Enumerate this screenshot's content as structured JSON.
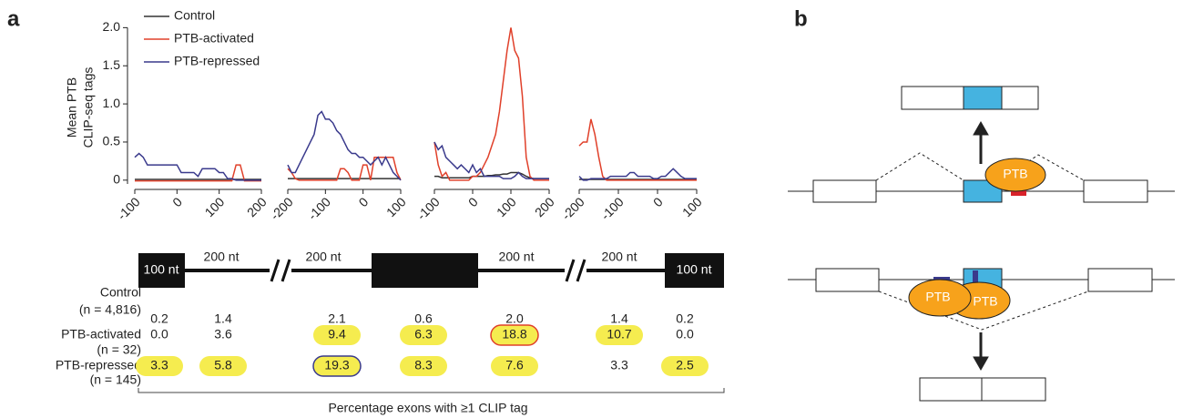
{
  "panel_labels": [
    "a",
    "b"
  ],
  "chart_data": [
    {
      "type": "line",
      "ylabel": [
        "Mean PTB",
        "CLIP-seq tags"
      ],
      "legend": "upper left",
      "xlim": [
        -100,
        200
      ],
      "xticks": [
        -100,
        0,
        100,
        200
      ],
      "ylim": [
        -0.05,
        2.1
      ],
      "yticks": [
        0,
        0.5,
        {
          "value": 1,
          "label": "1.0"
        },
        1.5,
        {
          "value": 2,
          "label": "2.0"
        }
      ],
      "x": [
        -100,
        -90,
        -80,
        -70,
        -60,
        -50,
        -40,
        -30,
        -20,
        -10,
        0,
        10,
        20,
        30,
        40,
        50,
        60,
        70,
        80,
        90,
        100,
        110,
        120,
        130,
        140,
        150,
        160,
        170,
        180,
        190,
        200
      ],
      "series": [
        {
          "name": "Control",
          "color": "#333333",
          "values": [
            0.01,
            0.01,
            0.01,
            0.01,
            0.01,
            0.01,
            0.01,
            0.01,
            0.01,
            0.01,
            0.01,
            0.01,
            0.01,
            0.01,
            0.01,
            0.01,
            0.01,
            0.01,
            0.01,
            0.01,
            0.01,
            0.01,
            0.01,
            0.01,
            0.01,
            0.01,
            0.01,
            0.01,
            0.01,
            0.01,
            0.01
          ]
        },
        {
          "name": "PTB-activated",
          "color": "#e0402a",
          "values": [
            -0.01,
            -0.01,
            -0.01,
            -0.01,
            -0.01,
            -0.01,
            -0.01,
            -0.01,
            -0.01,
            -0.01,
            -0.01,
            -0.01,
            -0.01,
            -0.01,
            -0.01,
            -0.01,
            -0.01,
            -0.01,
            -0.01,
            -0.01,
            -0.01,
            -0.01,
            -0.01,
            -0.01,
            0.2,
            0.2,
            -0.01,
            -0.01,
            -0.01,
            -0.01,
            -0.01
          ]
        },
        {
          "name": "PTB-repressed",
          "color": "#3a3a8c",
          "values": [
            0.3,
            0.35,
            0.3,
            0.2,
            0.2,
            0.2,
            0.2,
            0.2,
            0.2,
            0.2,
            0.2,
            0.1,
            0.1,
            0.1,
            0.1,
            0.05,
            0.15,
            0.15,
            0.15,
            0.15,
            0.1,
            0.1,
            0.02,
            0.02,
            0,
            0,
            0,
            0,
            0,
            0,
            0
          ]
        }
      ]
    },
    {
      "type": "line",
      "xlim": [
        -200,
        100
      ],
      "xticks": [
        -200,
        -100,
        0,
        100
      ],
      "ylim": [
        -0.05,
        2.1
      ],
      "x": [
        -200,
        -190,
        -180,
        -170,
        -160,
        -150,
        -140,
        -130,
        -120,
        -110,
        -100,
        -90,
        -80,
        -70,
        -60,
        -50,
        -40,
        -30,
        -20,
        -10,
        0,
        10,
        20,
        30,
        40,
        50,
        60,
        70,
        80,
        90,
        100
      ],
      "series": [
        {
          "color": "#333333",
          "values": [
            0.02,
            0.02,
            0.02,
            0.02,
            0.02,
            0.02,
            0.02,
            0.02,
            0.02,
            0.02,
            0.02,
            0.02,
            0.02,
            0.02,
            0.02,
            0.02,
            0.02,
            0.02,
            0.02,
            0.02,
            0.02,
            0.02,
            0.02,
            0.02,
            0.02,
            0.02,
            0.02,
            0.02,
            0.02,
            0.02,
            0.02
          ]
        },
        {
          "color": "#e0402a",
          "values": [
            0.15,
            0.1,
            0.02,
            0,
            0,
            0,
            0,
            0,
            0,
            0,
            0,
            0,
            0,
            0,
            0.15,
            0.15,
            0.1,
            0,
            0,
            0,
            0.2,
            0.2,
            0,
            0.3,
            0.3,
            0.3,
            0.3,
            0.3,
            0.3,
            0.1,
            0
          ]
        },
        {
          "color": "#3a3a8c",
          "values": [
            0.2,
            0.1,
            0.1,
            0.2,
            0.3,
            0.4,
            0.5,
            0.6,
            0.85,
            0.9,
            0.8,
            0.8,
            0.75,
            0.65,
            0.6,
            0.5,
            0.4,
            0.35,
            0.35,
            0.3,
            0.3,
            0.25,
            0.2,
            0.25,
            0.3,
            0.2,
            0.3,
            0.2,
            0.1,
            0.05,
            0
          ]
        }
      ]
    },
    {
      "type": "line",
      "xlim": [
        -100,
        200
      ],
      "xticks": [
        -100,
        0,
        100,
        200
      ],
      "ylim": [
        -0.05,
        2.1
      ],
      "x": [
        -100,
        -90,
        -80,
        -70,
        -60,
        -50,
        -40,
        -30,
        -20,
        -10,
        0,
        10,
        20,
        30,
        40,
        50,
        60,
        70,
        80,
        90,
        100,
        110,
        120,
        130,
        140,
        150,
        160,
        170,
        180,
        190,
        200
      ],
      "series": [
        {
          "color": "#333333",
          "values": [
            0.05,
            0.05,
            0.03,
            0.03,
            0.03,
            0.03,
            0.03,
            0.03,
            0.03,
            0.03,
            0.05,
            0.05,
            0.05,
            0.05,
            0.06,
            0.06,
            0.07,
            0.07,
            0.08,
            0.08,
            0.1,
            0.1,
            0.1,
            0.08,
            0.05,
            0.03,
            0.02,
            0.02,
            0.02,
            0.02,
            0.02
          ]
        },
        {
          "color": "#e0402a",
          "values": [
            0.5,
            0.2,
            0.05,
            0.1,
            0,
            0,
            0,
            0,
            0,
            0,
            0.05,
            0.05,
            0.1,
            0.2,
            0.3,
            0.45,
            0.6,
            0.9,
            1.3,
            1.7,
            2.0,
            1.7,
            1.6,
            1.1,
            0.3,
            0.05,
            0,
            0,
            0,
            0,
            0
          ]
        },
        {
          "color": "#3a3a8c",
          "values": [
            0.5,
            0.4,
            0.45,
            0.3,
            0.25,
            0.2,
            0.15,
            0.2,
            0.15,
            0.1,
            0.2,
            0.1,
            0.15,
            0.05,
            0.05,
            0.05,
            0.05,
            0.05,
            0.02,
            0.02,
            0.02,
            0.05,
            0.1,
            0.05,
            0.02,
            0.02,
            0.02,
            0.02,
            0.02,
            0.02,
            0.02
          ]
        }
      ]
    },
    {
      "type": "line",
      "xlim": [
        -200,
        100
      ],
      "xticks": [
        -200,
        -100,
        0,
        100
      ],
      "ylim": [
        -0.05,
        2.1
      ],
      "x": [
        -200,
        -190,
        -180,
        -170,
        -160,
        -150,
        -140,
        -130,
        -120,
        -110,
        -100,
        -90,
        -80,
        -70,
        -60,
        -50,
        -40,
        -30,
        -20,
        -10,
        0,
        10,
        20,
        30,
        40,
        50,
        60,
        70,
        80,
        90,
        100
      ],
      "series": [
        {
          "color": "#333333",
          "values": [
            0.01,
            0.01,
            0.01,
            0.01,
            0.01,
            0.01,
            0.01,
            0.01,
            0.01,
            0.01,
            0.01,
            0.01,
            0.01,
            0.01,
            0.01,
            0.01,
            0.01,
            0.01,
            0.01,
            0.01,
            0.01,
            0.01,
            0.01,
            0.01,
            0.01,
            0.01,
            0.01,
            0.01,
            0.01,
            0.01,
            0.01
          ]
        },
        {
          "color": "#e0402a",
          "values": [
            0.45,
            0.5,
            0.5,
            0.8,
            0.6,
            0.3,
            0.05,
            0,
            0,
            0,
            0,
            0,
            0,
            0,
            0,
            0,
            0,
            0,
            0,
            0,
            0,
            0,
            0,
            0,
            0,
            0,
            0,
            0,
            0,
            0,
            0
          ]
        },
        {
          "color": "#3a3a8c",
          "values": [
            0.05,
            0,
            0,
            0.02,
            0.02,
            0.02,
            0.02,
            0.02,
            0.05,
            0.05,
            0.05,
            0.05,
            0.05,
            0.1,
            0.1,
            0.05,
            0.05,
            0.05,
            0.05,
            0.02,
            0.02,
            0.05,
            0.05,
            0.1,
            0.15,
            0.1,
            0.05,
            0.02,
            0.02,
            0.02,
            0.02
          ]
        }
      ]
    }
  ],
  "gene_schematic": {
    "labels": [
      "100 nt",
      "200 nt",
      "200 nt",
      "200 nt",
      "200 nt",
      "100 nt"
    ]
  },
  "table": {
    "row_labels": [
      [
        "Control",
        "(n = 4,816)"
      ],
      [
        "PTB-activated",
        "(n = 32)"
      ],
      [
        "PTB-repressed",
        "(n = 145)"
      ]
    ],
    "rows": [
      [
        {
          "text": "0.2",
          "highlight": false
        },
        {
          "text": "1.4",
          "highlight": false
        },
        {
          "text": "2.1",
          "highlight": false
        },
        {
          "text": "0.6",
          "highlight": false
        },
        {
          "text": "2.0",
          "highlight": false
        },
        {
          "text": "1.4",
          "highlight": false
        },
        {
          "text": "0.2",
          "highlight": false
        }
      ],
      [
        {
          "text": "0.0",
          "highlight": false
        },
        {
          "text": "3.6",
          "highlight": false
        },
        {
          "text": "9.4",
          "highlight": true
        },
        {
          "text": "6.3",
          "highlight": true
        },
        {
          "text": "18.8",
          "highlight": true,
          "outline": "#e0402a"
        },
        {
          "text": "10.7",
          "highlight": true
        },
        {
          "text": "0.0",
          "highlight": false
        }
      ],
      [
        {
          "text": "3.3",
          "highlight": true
        },
        {
          "text": "5.8",
          "highlight": true
        },
        {
          "text": "19.3",
          "highlight": true,
          "outline": "#3a3a8c"
        },
        {
          "text": "8.3",
          "highlight": true
        },
        {
          "text": "7.6",
          "highlight": true
        },
        {
          "text": "3.3",
          "highlight": false
        },
        {
          "text": "2.5",
          "highlight": true
        }
      ]
    ],
    "caption": "Percentage exons with ≥1 CLIP tag"
  },
  "diagram": {
    "protein_label": "PTB"
  }
}
